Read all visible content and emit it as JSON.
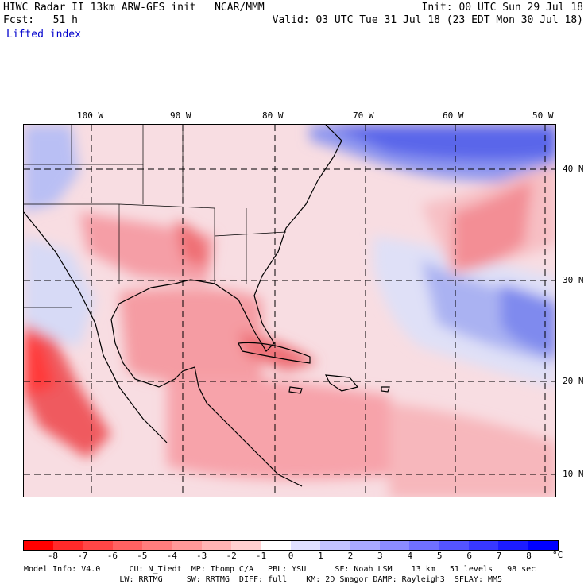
{
  "header": {
    "line1_left": "HIWC Radar II 13km ARW-GFS init   NCAR/MMM",
    "line1_right": "Init: 00 UTC Sun 29 Jul 18",
    "line2_left": "Fcst:   51 h",
    "line2_right": "Valid: 03 UTC Tue 31 Jul 18 (23 EDT Mon 30 Jul 18)",
    "field_name": "Lifted index"
  },
  "map": {
    "lon_labels": [
      "100 W",
      "90 W",
      "80 W",
      "70 W",
      "60 W",
      "50 W"
    ],
    "lat_labels": [
      "40 N",
      "30 N",
      "20 N",
      "10 N"
    ]
  },
  "colorbar": {
    "tick_labels": [
      "-8",
      "-7",
      "-6",
      "-5",
      "-4",
      "-3",
      "-2",
      "-1",
      "0",
      "1",
      "2",
      "3",
      "4",
      "5",
      "6",
      "7",
      "8"
    ],
    "unit": "°C",
    "colors": [
      "#ff0000",
      "#ff2a2a",
      "#ff4646",
      "#ff6262",
      "#ff7d7d",
      "#ff9999",
      "#ffb4b4",
      "#ffd0d0",
      "#ffffff",
      "#e0e0ff",
      "#c4c4ff",
      "#a8a8ff",
      "#8c8cff",
      "#7070ff",
      "#5454ff",
      "#3838ff",
      "#1c1cff",
      "#0000ff"
    ]
  },
  "footer": {
    "line1": "Model Info: V4.0      CU: N_Tiedt  MP: Thomp C/A   PBL: YSU      SF: Noah LSM    13 km   51 levels   98 sec",
    "line2": "                    LW: RRTMG     SW: RRTMG  DIFF: full    KM: 2D Smagor DAMP: Rayleigh3  SFLAY: MM5"
  }
}
